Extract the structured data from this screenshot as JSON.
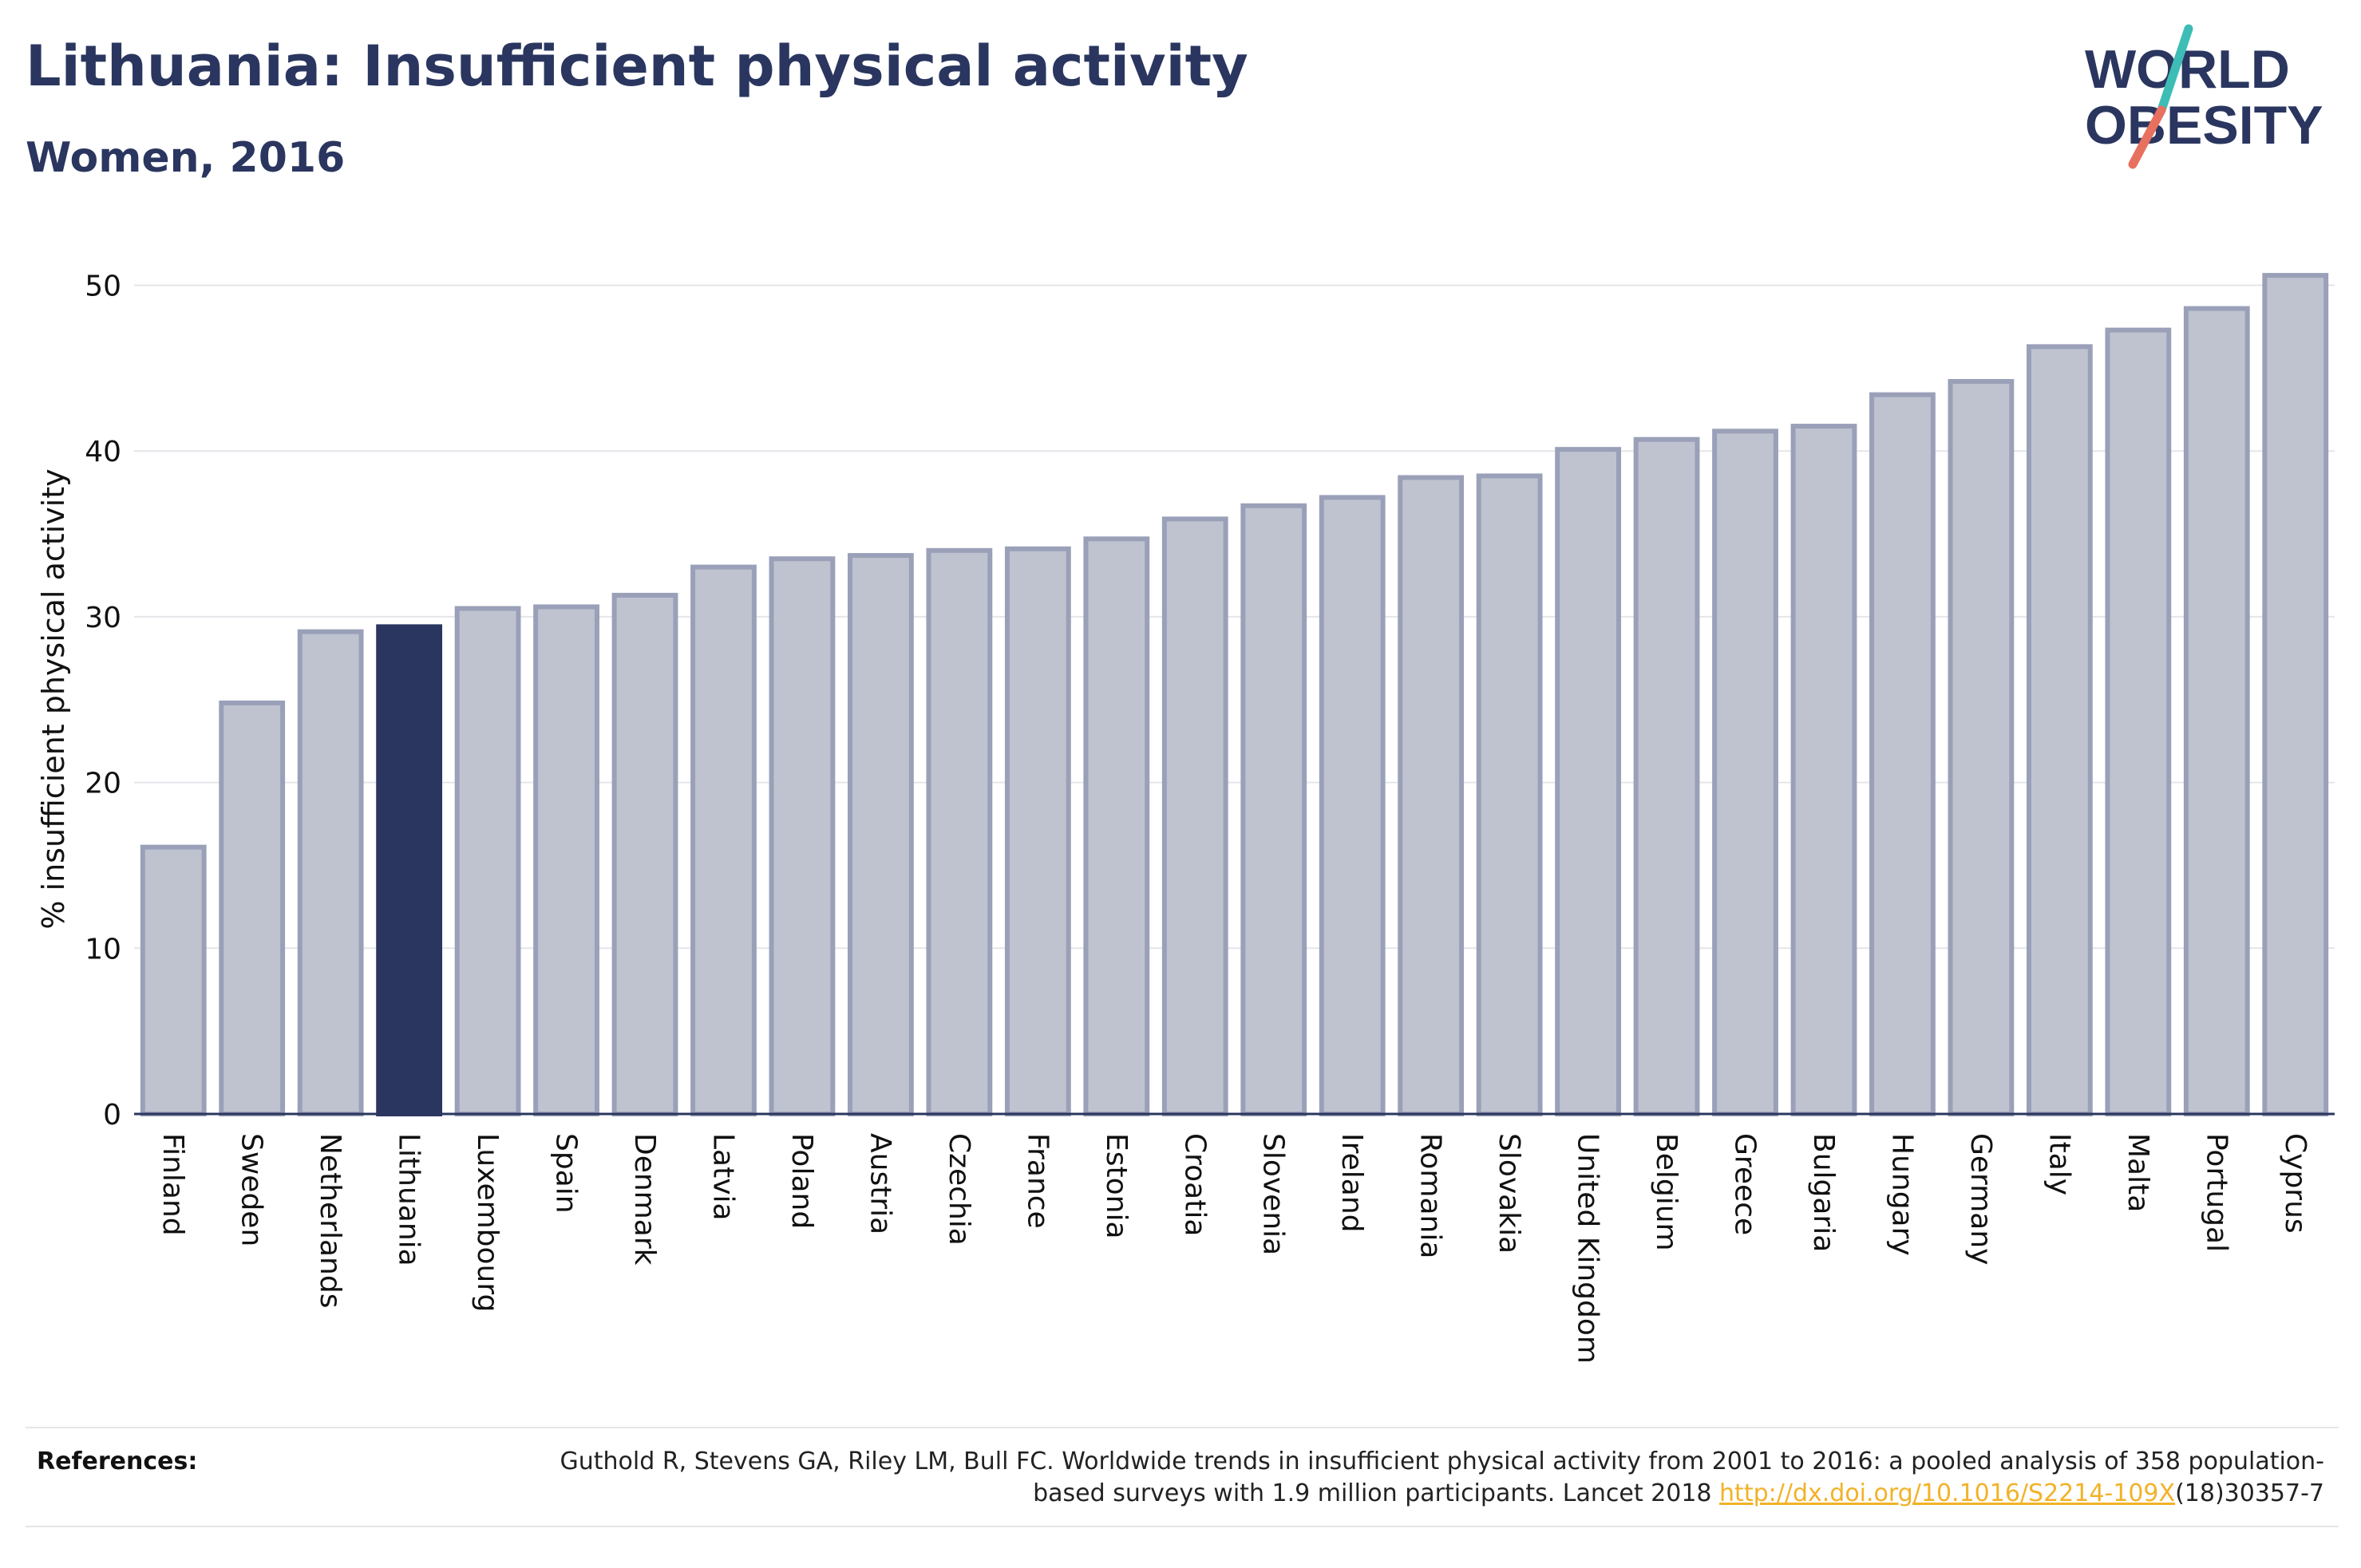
{
  "title": "Lithuania: Insufficient physical activity",
  "subtitle": "Women, 2016",
  "logo": {
    "line1": "WORLD",
    "line2": "OBESITY",
    "accent_teal": "#3dbdb5",
    "accent_red": "#e8705f"
  },
  "chart_data": {
    "type": "bar",
    "ylabel": "% insufficient physical activity",
    "ylim": [
      0,
      52
    ],
    "yticks": [
      0,
      10,
      20,
      30,
      40,
      50
    ],
    "grid": true,
    "highlight": "Lithuania",
    "colors": {
      "bar": "#bfc3d0",
      "bar_edge": "#9aa0b8",
      "highlight": "#2a365f",
      "grid": "#e4e6ea",
      "axis": "#2a365f"
    },
    "categories": [
      "Finland",
      "Sweden",
      "Netherlands",
      "Lithuania",
      "Luxembourg",
      "Spain",
      "Denmark",
      "Latvia",
      "Poland",
      "Austria",
      "Czechia",
      "France",
      "Estonia",
      "Croatia",
      "Slovenia",
      "Ireland",
      "Romania",
      "Slovakia",
      "United Kingdom",
      "Belgium",
      "Greece",
      "Bulgaria",
      "Hungary",
      "Germany",
      "Italy",
      "Malta",
      "Portugal",
      "Cyprus"
    ],
    "values": [
      16.1,
      24.8,
      29.1,
      29.4,
      30.5,
      30.6,
      31.3,
      33.0,
      33.5,
      33.7,
      34.0,
      34.1,
      34.7,
      35.9,
      36.7,
      37.2,
      38.4,
      38.5,
      40.1,
      40.7,
      41.2,
      41.5,
      43.4,
      44.2,
      46.3,
      47.3,
      48.6,
      50.6
    ]
  },
  "references": {
    "label": "References:",
    "text_before": "Guthold R, Stevens GA, Riley LM, Bull FC. Worldwide trends in insufficient physical activity from 2001 to 2016: a pooled analysis of 358 population-based surveys with 1.9 million participants. Lancet 2018 ",
    "link": "http://dx.doi.org/10.1016/S2214-109X",
    "text_after": "(18)30357-7"
  }
}
